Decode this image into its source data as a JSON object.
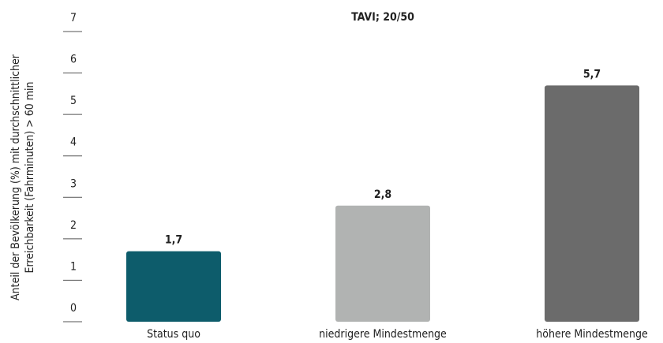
{
  "chart_data": {
    "type": "bar",
    "title": "TAVI; 20/50",
    "ylabel": [
      "Anteil der Bevölkerung (%) mit durchschnittlicher",
      "Erreichbarkeit (Fahrminuten) > 60 min"
    ],
    "categories": [
      "Status quo",
      "niedrigere Mindestmenge",
      "höhere Mindestmenge"
    ],
    "values": [
      1.7,
      2.8,
      5.7
    ],
    "value_labels": [
      "1,7",
      "2,8",
      "5,7"
    ],
    "colors": [
      "#0d5c6b",
      "#b1b3b2",
      "#6b6b6b"
    ],
    "ylim": [
      0,
      7
    ],
    "yticks": [
      0,
      1,
      2,
      3,
      4,
      5,
      6,
      7
    ]
  }
}
